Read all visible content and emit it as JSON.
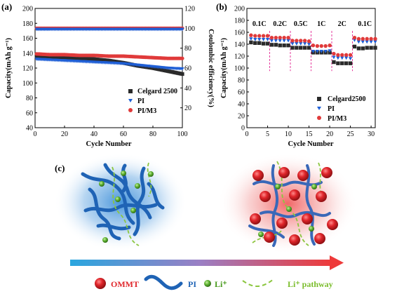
{
  "chart_data": [
    {
      "panel": "(a)",
      "type": "scatter",
      "xlabel": "Cycle Number",
      "ylabel": "Capacity(mAh g⁻¹)",
      "y2label": "Coulombic efficiency(%)",
      "xlim": [
        0,
        100
      ],
      "ylim": [
        40,
        200
      ],
      "y2lim": [
        0,
        120
      ],
      "xticks": [
        "0",
        "20",
        "40",
        "60",
        "80",
        "100"
      ],
      "yticks": [
        "40",
        "60",
        "80",
        "100",
        "120",
        "140",
        "160",
        "180",
        "200"
      ],
      "y2ticks": [
        "20",
        "40",
        "60",
        "80",
        "100",
        "120"
      ],
      "legend": [
        "Celgard 2500",
        "PI",
        "PI/M3"
      ],
      "legend_position": "bottom-right",
      "series": [
        {
          "name": "Celgard 2500",
          "axis": "left",
          "marker": "square",
          "color": "#2a2a2a",
          "x": [
            1,
            10,
            20,
            30,
            40,
            50,
            60,
            70,
            80,
            90,
            100
          ],
          "y": [
            136,
            135,
            134,
            133,
            132,
            130,
            127,
            123,
            120,
            116,
            112
          ]
        },
        {
          "name": "PI",
          "axis": "left",
          "marker": "triangle-down",
          "color": "#1f5fd6",
          "x": [
            1,
            10,
            20,
            30,
            40,
            50,
            60,
            70,
            80,
            90,
            100
          ],
          "y": [
            132,
            131,
            130,
            129,
            128,
            127,
            126,
            124,
            122,
            120,
            119
          ]
        },
        {
          "name": "PI/M3",
          "axis": "left",
          "marker": "circle",
          "color": "#e03a3a",
          "x": [
            1,
            10,
            20,
            30,
            40,
            50,
            60,
            70,
            80,
            90,
            100
          ],
          "y": [
            139,
            138,
            138,
            137,
            137,
            136,
            136,
            135,
            134,
            133,
            133
          ]
        },
        {
          "name": "PI/M3 CE",
          "axis": "right",
          "marker": "circle",
          "color": "#e03a3a",
          "x": [
            1,
            10,
            20,
            30,
            40,
            50,
            60,
            70,
            80,
            90,
            100
          ],
          "y": [
            100,
            100,
            100,
            100,
            100,
            100,
            100,
            100,
            100,
            100,
            100
          ]
        },
        {
          "name": "PI CE",
          "axis": "right",
          "marker": "triangle-down",
          "color": "#1f5fd6",
          "x": [
            1,
            10,
            20,
            30,
            40,
            50,
            60,
            70,
            80,
            90,
            100
          ],
          "y": [
            99,
            99,
            99,
            99,
            99,
            99,
            99,
            99,
            99,
            99,
            99
          ]
        }
      ]
    },
    {
      "panel": "(b)",
      "type": "scatter",
      "xlabel": "Cycle Number",
      "ylabel": "Capacity(mAh g⁻¹)",
      "xlim": [
        0,
        31
      ],
      "ylim": [
        0,
        200
      ],
      "xticks": [
        "0",
        "5",
        "10",
        "15",
        "20",
        "25",
        "30"
      ],
      "yticks": [
        "0",
        "20",
        "40",
        "60",
        "80",
        "100",
        "120",
        "140",
        "160",
        "180",
        "200"
      ],
      "rate_labels": [
        "0.1C",
        "0.2C",
        "0.5C",
        "1C",
        "2C",
        "0.1C"
      ],
      "legend": [
        "Celgard2500",
        "PI",
        "PI/M3"
      ],
      "legend_position": "bottom-right",
      "cycles": [
        1,
        2,
        3,
        4,
        5,
        6,
        7,
        8,
        9,
        10,
        11,
        12,
        13,
        14,
        15,
        16,
        17,
        18,
        19,
        20,
        21,
        22,
        23,
        24,
        25,
        26,
        27,
        28,
        29,
        30,
        31
      ],
      "series": [
        {
          "name": "Celgard2500",
          "marker": "square",
          "color": "#2a2a2a",
          "values": [
            143,
            142,
            142,
            141,
            141,
            139,
            139,
            138,
            138,
            138,
            134,
            134,
            134,
            134,
            134,
            126,
            126,
            126,
            126,
            126,
            110,
            108,
            108,
            108,
            108,
            136,
            133,
            133,
            134,
            134,
            134
          ]
        },
        {
          "name": "PI",
          "marker": "triangle-down",
          "color": "#1f5fd6",
          "values": [
            149,
            148,
            148,
            148,
            148,
            146,
            146,
            146,
            146,
            146,
            141,
            141,
            141,
            141,
            140,
            128,
            128,
            128,
            128,
            129,
            118,
            117,
            117,
            117,
            116,
            147,
            144,
            144,
            144,
            144,
            144
          ]
        },
        {
          "name": "PI/M3",
          "marker": "circle",
          "color": "#e03a3a",
          "values": [
            155,
            154,
            154,
            154,
            154,
            151,
            151,
            151,
            151,
            151,
            146,
            146,
            146,
            146,
            145,
            138,
            137,
            137,
            137,
            138,
            124,
            122,
            122,
            122,
            122,
            151,
            149,
            149,
            149,
            149,
            149
          ]
        }
      ]
    }
  ],
  "panel_c": {
    "label": "(c)",
    "key": {
      "ommt": "OMMT",
      "pi": "PI",
      "li": "Li⁺",
      "pathway": "Li⁺ pathway"
    },
    "colors": {
      "ommt": "#e0262b",
      "pi": "#1f63b5",
      "li": "#6abf3b",
      "pathway": "#8cc63f"
    }
  }
}
